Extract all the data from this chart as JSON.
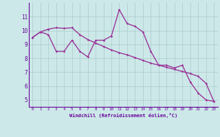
{
  "x": [
    0,
    1,
    2,
    3,
    4,
    5,
    6,
    7,
    8,
    9,
    10,
    11,
    12,
    13,
    14,
    15,
    16,
    17,
    18,
    19,
    20,
    21,
    22,
    23
  ],
  "y_jagged": [
    9.5,
    9.9,
    9.7,
    8.5,
    8.5,
    9.3,
    8.5,
    8.1,
    9.3,
    9.3,
    9.6,
    11.5,
    10.5,
    10.3,
    9.9,
    8.5,
    7.5,
    7.5,
    7.3,
    7.5,
    6.3,
    5.5,
    5.0,
    4.9
  ],
  "y_smooth": [
    9.5,
    9.9,
    10.1,
    10.2,
    10.15,
    10.2,
    9.7,
    9.35,
    9.1,
    8.85,
    8.6,
    8.4,
    8.25,
    8.05,
    7.85,
    7.65,
    7.5,
    7.35,
    7.2,
    7.05,
    6.9,
    6.7,
    6.2,
    4.9
  ],
  "line_color": "#993399",
  "bg_color": "#cce8e8",
  "grid_color": "#aacaca",
  "axis_color": "#660099",
  "text_color": "#660099",
  "xlabel": "Windchill (Refroidissement éolien,°C)",
  "ylim": [
    4.5,
    12.0
  ],
  "xlim": [
    -0.5,
    23.5
  ],
  "yticks": [
    5,
    6,
    7,
    8,
    9,
    10,
    11
  ],
  "xticks": [
    0,
    1,
    2,
    3,
    4,
    5,
    6,
    7,
    8,
    9,
    10,
    11,
    12,
    13,
    14,
    15,
    16,
    17,
    18,
    19,
    20,
    21,
    22,
    23
  ]
}
